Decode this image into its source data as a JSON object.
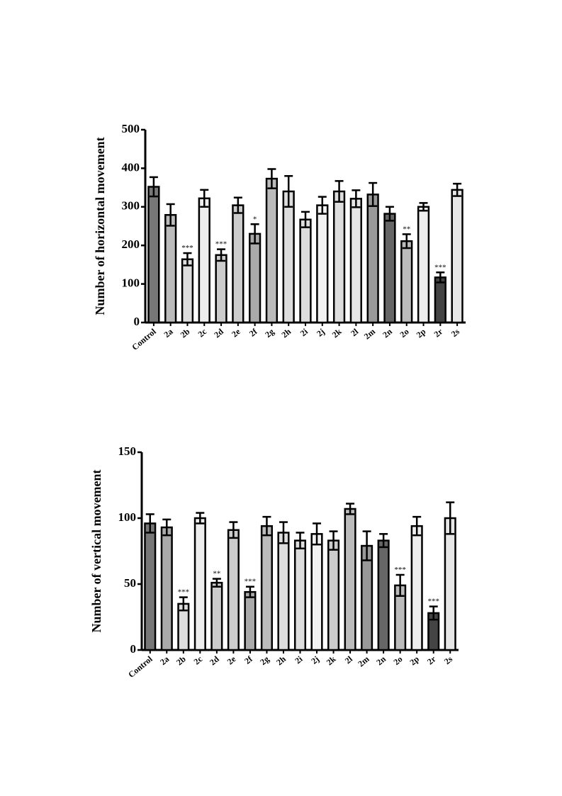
{
  "chart_data": [
    {
      "type": "bar",
      "y_label": "Number of horizontal movement",
      "categories": [
        "Control",
        "2a",
        "2b",
        "2c",
        "2d",
        "2e",
        "2f",
        "2g",
        "2h",
        "2i",
        "2j",
        "2k",
        "2l",
        "2m",
        "2n",
        "2o",
        "2p",
        "2r",
        "2s"
      ],
      "values": [
        352,
        279,
        164,
        322,
        175,
        304,
        230,
        373,
        340,
        267,
        304,
        340,
        321,
        332,
        282,
        211,
        300,
        117,
        344
      ],
      "errors": [
        25,
        28,
        16,
        22,
        15,
        20,
        25,
        25,
        40,
        20,
        22,
        27,
        22,
        30,
        18,
        18,
        10,
        13,
        16
      ],
      "annotations": [
        null,
        null,
        "***",
        null,
        "***",
        null,
        "*",
        null,
        null,
        null,
        null,
        null,
        null,
        null,
        null,
        "**",
        null,
        "***",
        null
      ],
      "colors": [
        "#777",
        "#bbb",
        "#ddd",
        "#eee",
        "#ccc",
        "#ccc",
        "#aaa",
        "#bbb",
        "#ddd",
        "#ddd",
        "#f2f2f2",
        "#ddd",
        "#e6e6e6",
        "#999",
        "#666",
        "#bbb",
        "#eee",
        "#444",
        "#e6e6e6"
      ],
      "ylim": [
        0,
        500
      ],
      "yticks": [
        0,
        100,
        200,
        300,
        400,
        500
      ]
    },
    {
      "type": "bar",
      "y_label": "Number of vertical movement",
      "categories": [
        "Control",
        "2a",
        "2b",
        "2c",
        "2d",
        "2e",
        "2f",
        "2g",
        "2h",
        "2i",
        "2j",
        "2k",
        "2l",
        "2m",
        "2n",
        "2o",
        "2p",
        "2r",
        "2s"
      ],
      "values": [
        96,
        93,
        35,
        100,
        51,
        91,
        44,
        94,
        89,
        83,
        88,
        83,
        107,
        79,
        83,
        49,
        94,
        28,
        100
      ],
      "errors": [
        7,
        6,
        5,
        4,
        3,
        6,
        4,
        7,
        8,
        6,
        8,
        7,
        4,
        11,
        5,
        8,
        7,
        5,
        12
      ],
      "annotations": [
        null,
        null,
        "***",
        null,
        "**",
        null,
        "***",
        null,
        null,
        null,
        null,
        null,
        null,
        null,
        null,
        "***",
        null,
        "***",
        null
      ],
      "colors": [
        "#777",
        "#aaa",
        "#ddd",
        "#eee",
        "#ccc",
        "#ccc",
        "#aaa",
        "#bbb",
        "#ddd",
        "#ddd",
        "#f2f2f2",
        "#ccc",
        "#bbb",
        "#999",
        "#666",
        "#bbb",
        "#eee",
        "#444",
        "#e6e6e6"
      ],
      "ylim": [
        0,
        150
      ],
      "yticks": [
        0,
        50,
        100,
        150
      ]
    }
  ]
}
